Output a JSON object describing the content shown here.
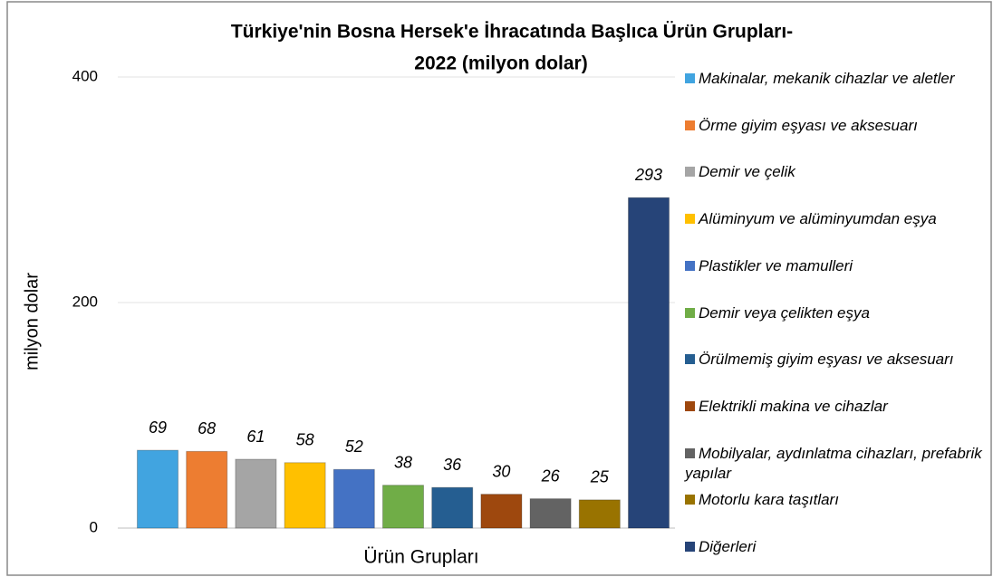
{
  "chart_data": {
    "type": "bar",
    "title": [
      "Türkiye'nin Bosna Hersek'e İhracatında Başlıca Ürün Grupları-",
      "2022 (milyon dolar)"
    ],
    "x_label": "Ürün Grupları",
    "y_label": "milyon dolar",
    "categories": [
      "Makinalar, mekanik cihazlar ve aletler",
      "Örme giyim eşyası ve aksesuarı",
      "Demir ve çelik",
      "Alüminyum ve alüminyumdan eşya",
      "Plastikler ve mamulleri",
      "Demir veya çelikten eşya",
      "Örülmemiş giyim eşyası ve aksesuarı",
      "Elektrikli makina ve cihazlar",
      "Mobilyalar, aydınlatma cihazları, prefabrik yapılar",
      "Motorlu kara taşıtları",
      "Diğerleri"
    ],
    "values": [
      69,
      68,
      61,
      58,
      52,
      38,
      36,
      30,
      26,
      25,
      293
    ],
    "colors": [
      "#41a4e0",
      "#ed7d31",
      "#a5a5a5",
      "#ffc000",
      "#4472c4",
      "#70ad47",
      "#255e91",
      "#9e480e",
      "#636363",
      "#997300",
      "#264478"
    ],
    "ylim": [
      0,
      400
    ],
    "yticks": [
      0,
      200,
      400
    ],
    "grid": true
  }
}
